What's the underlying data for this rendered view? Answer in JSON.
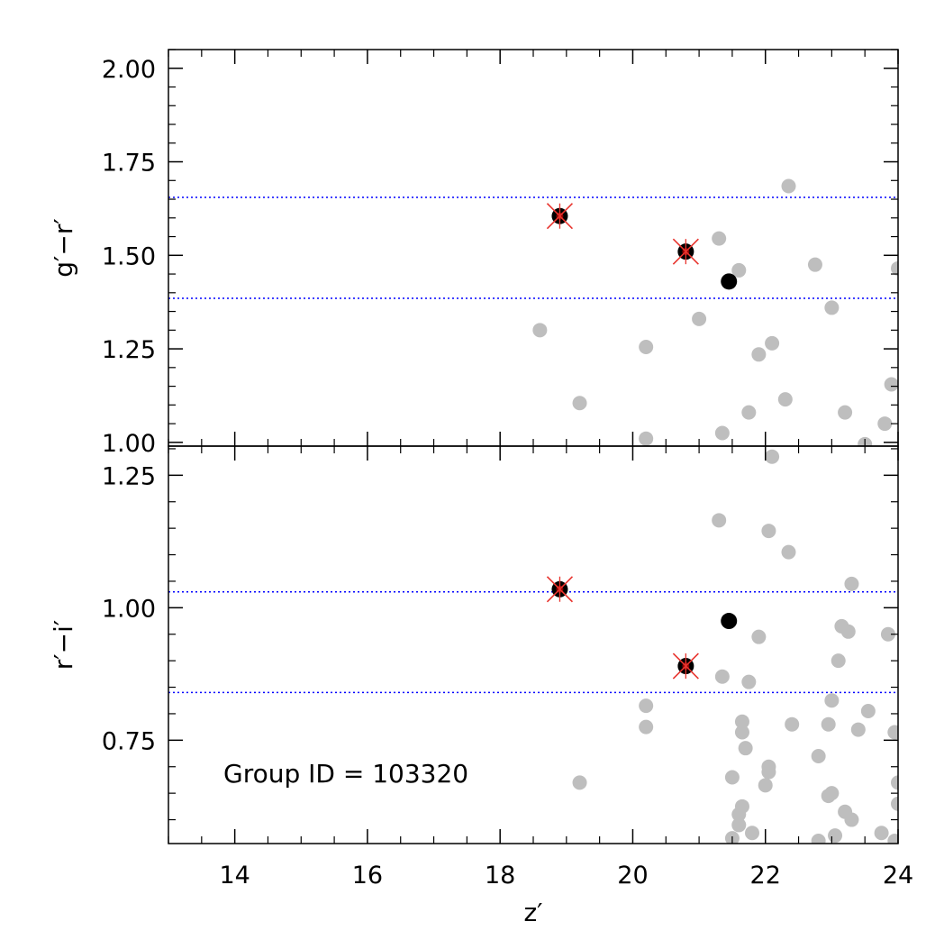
{
  "chart_data": {
    "type": "scatter",
    "x": {
      "label": "z′",
      "range": [
        13,
        24
      ],
      "ticks": [
        14,
        16,
        18,
        20,
        22,
        24
      ],
      "tick_labels": [
        "14",
        "16",
        "18",
        "20",
        "22",
        "24"
      ],
      "minor_step": 0.5
    },
    "annotation": "Group ID = 103320",
    "colors": {
      "field_points": "#bebebe",
      "member_points": "#000000",
      "red_sequence_marker": "#e8342e",
      "red_sequence_core": "#8a0000",
      "limit_lines": "#0000ff"
    },
    "panels": [
      {
        "id": "top",
        "y_label": "g′−r′",
        "y_range": [
          0.99,
          2.05
        ],
        "ticks": [
          1.0,
          1.25,
          1.5,
          1.75,
          2.0
        ],
        "tick_labels": [
          "1.00",
          "1.25",
          "1.50",
          "1.75",
          "2.00"
        ],
        "minor_step": 0.05,
        "limits": [
          1.385,
          1.655
        ],
        "series": [
          {
            "role": "field",
            "points": [
              [
                18.6,
                1.3
              ],
              [
                19.2,
                1.105
              ],
              [
                20.2,
                1.255
              ],
              [
                20.2,
                1.01
              ],
              [
                21.0,
                1.33
              ],
              [
                21.3,
                1.545
              ],
              [
                21.6,
                1.46
              ],
              [
                21.35,
                1.025
              ],
              [
                21.75,
                1.08
              ],
              [
                21.9,
                1.235
              ],
              [
                22.1,
                1.265
              ],
              [
                22.3,
                1.115
              ],
              [
                22.35,
                1.685
              ],
              [
                22.75,
                1.475
              ],
              [
                23.0,
                1.36
              ],
              [
                23.2,
                1.08
              ],
              [
                23.5,
                0.995
              ],
              [
                23.8,
                1.05
              ],
              [
                23.9,
                1.155
              ],
              [
                24.0,
                1.465
              ]
            ]
          },
          {
            "role": "member",
            "points": [
              [
                21.45,
                1.43
              ]
            ]
          },
          {
            "role": "red-sequence",
            "points": [
              [
                18.9,
                1.605
              ],
              [
                20.8,
                1.51
              ]
            ]
          }
        ]
      },
      {
        "id": "bottom",
        "y_label": "r′−i′",
        "y_range": [
          0.555,
          1.305
        ],
        "ticks": [
          0.75,
          1.0,
          1.25
        ],
        "tick_labels": [
          "0.75",
          "1.00",
          "1.25"
        ],
        "minor_step": 0.05,
        "limits": [
          0.84,
          1.03
        ],
        "series": [
          {
            "role": "field",
            "points": [
              [
                19.2,
                0.67
              ],
              [
                20.2,
                0.815
              ],
              [
                20.2,
                0.775
              ],
              [
                21.3,
                1.165
              ],
              [
                21.35,
                0.87
              ],
              [
                21.5,
                0.68
              ],
              [
                21.5,
                0.565
              ],
              [
                21.6,
                0.61
              ],
              [
                21.6,
                0.59
              ],
              [
                21.65,
                0.625
              ],
              [
                21.65,
                0.785
              ],
              [
                21.65,
                0.765
              ],
              [
                21.7,
                0.735
              ],
              [
                21.75,
                0.86
              ],
              [
                21.8,
                0.575
              ],
              [
                21.9,
                0.945
              ],
              [
                22.0,
                0.665
              ],
              [
                22.05,
                0.7
              ],
              [
                22.05,
                0.69
              ],
              [
                22.05,
                1.145
              ],
              [
                22.1,
                1.285
              ],
              [
                22.35,
                1.105
              ],
              [
                22.4,
                0.78
              ],
              [
                22.8,
                0.72
              ],
              [
                22.8,
                0.56
              ],
              [
                22.95,
                0.78
              ],
              [
                22.95,
                0.645
              ],
              [
                23.0,
                0.65
              ],
              [
                23.0,
                0.825
              ],
              [
                23.05,
                0.57
              ],
              [
                23.1,
                0.9
              ],
              [
                23.15,
                0.965
              ],
              [
                23.2,
                0.615
              ],
              [
                23.25,
                0.955
              ],
              [
                23.3,
                0.6
              ],
              [
                23.3,
                1.045
              ],
              [
                23.4,
                0.77
              ],
              [
                23.55,
                0.805
              ],
              [
                23.75,
                0.575
              ],
              [
                23.85,
                0.95
              ],
              [
                23.95,
                0.765
              ],
              [
                24.0,
                0.67
              ],
              [
                24.0,
                0.63
              ],
              [
                23.95,
                0.56
              ]
            ]
          },
          {
            "role": "member",
            "points": [
              [
                21.45,
                0.975
              ]
            ]
          },
          {
            "role": "red-sequence",
            "points": [
              [
                18.9,
                1.035
              ],
              [
                20.8,
                0.89
              ]
            ]
          }
        ]
      }
    ]
  }
}
